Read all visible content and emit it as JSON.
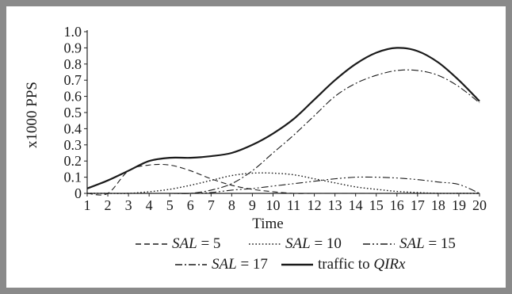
{
  "chart_data": {
    "type": "line",
    "title": "",
    "xlabel": "Time",
    "ylabel": "x1000 PPS",
    "xlim": [
      1,
      20
    ],
    "ylim": [
      0,
      1.0
    ],
    "x_ticks": [
      1,
      2,
      3,
      4,
      5,
      6,
      7,
      8,
      9,
      10,
      11,
      12,
      13,
      14,
      15,
      16,
      17,
      18,
      19,
      20
    ],
    "y_ticks": [
      "0",
      "0.1",
      "0.2",
      "0.3",
      "0.4",
      "0.5",
      "0.6",
      "0.7",
      "0.8",
      "0.9",
      "1.0"
    ],
    "grid": false,
    "legend_placement": "bottom",
    "series": [
      {
        "name": "SAL = 5",
        "legend_var": "SAL",
        "legend_rest": " = 5",
        "dash": "dashed",
        "x": [
          1,
          2,
          3,
          4,
          5,
          6,
          7,
          8,
          9,
          10,
          11,
          12,
          13,
          14,
          15,
          16,
          17,
          18,
          19,
          20
        ],
        "y": [
          0.0,
          0.0,
          0.14,
          0.175,
          0.175,
          0.14,
          0.09,
          0.05,
          0.025,
          0.01,
          0.0,
          0.0,
          0.0,
          0.0,
          0.0,
          0.0,
          0.0,
          0.0,
          0.0,
          0.0
        ]
      },
      {
        "name": "SAL = 10",
        "legend_var": "SAL",
        "legend_rest": " = 10",
        "dash": "dotted",
        "x": [
          1,
          2,
          3,
          4,
          5,
          6,
          7,
          8,
          9,
          10,
          11,
          12,
          13,
          14,
          15,
          16,
          17,
          18,
          19,
          20
        ],
        "y": [
          0.0,
          0.0,
          0.0,
          0.01,
          0.025,
          0.05,
          0.08,
          0.11,
          0.125,
          0.125,
          0.115,
          0.09,
          0.065,
          0.04,
          0.025,
          0.012,
          0.005,
          0.0,
          0.0,
          0.0
        ]
      },
      {
        "name": "SAL = 15",
        "legend_var": "SAL",
        "legend_rest": " = 15",
        "dash": "dashdotdot",
        "x": [
          1,
          2,
          3,
          4,
          5,
          6,
          7,
          8,
          9,
          10,
          11,
          12,
          13,
          14,
          15,
          16,
          17,
          18,
          19,
          20
        ],
        "y": [
          0.0,
          0.0,
          0.0,
          0.0,
          0.0,
          0.0,
          0.005,
          0.02,
          0.03,
          0.045,
          0.06,
          0.075,
          0.09,
          0.1,
          0.1,
          0.095,
          0.085,
          0.07,
          0.055,
          0.0
        ]
      },
      {
        "name": "SAL = 17",
        "legend_var": "SAL",
        "legend_rest": " = 17",
        "dash": "dashdot",
        "x": [
          1,
          2,
          3,
          4,
          5,
          6,
          7,
          8,
          9,
          10,
          11,
          12,
          13,
          14,
          15,
          16,
          17,
          18,
          19,
          20
        ],
        "y": [
          0.0,
          0.0,
          0.0,
          0.0,
          0.0,
          0.0,
          0.02,
          0.06,
          0.14,
          0.25,
          0.36,
          0.48,
          0.6,
          0.68,
          0.73,
          0.76,
          0.76,
          0.73,
          0.66,
          0.56
        ]
      },
      {
        "name": "traffic to QIRx",
        "legend_text": "traffic to ",
        "legend_var": "QIRx",
        "dash": "solid",
        "x": [
          1,
          2,
          3,
          4,
          5,
          6,
          7,
          8,
          9,
          10,
          11,
          12,
          13,
          14,
          15,
          16,
          17,
          18,
          19,
          20
        ],
        "y": [
          0.03,
          0.08,
          0.14,
          0.2,
          0.22,
          0.22,
          0.23,
          0.25,
          0.3,
          0.37,
          0.46,
          0.58,
          0.7,
          0.8,
          0.87,
          0.9,
          0.88,
          0.81,
          0.7,
          0.57
        ]
      }
    ]
  },
  "colors": {
    "frame": "#8a8a8a",
    "line": "#1a1a1a",
    "axis": "#222222",
    "text": "#1a1a1a"
  }
}
